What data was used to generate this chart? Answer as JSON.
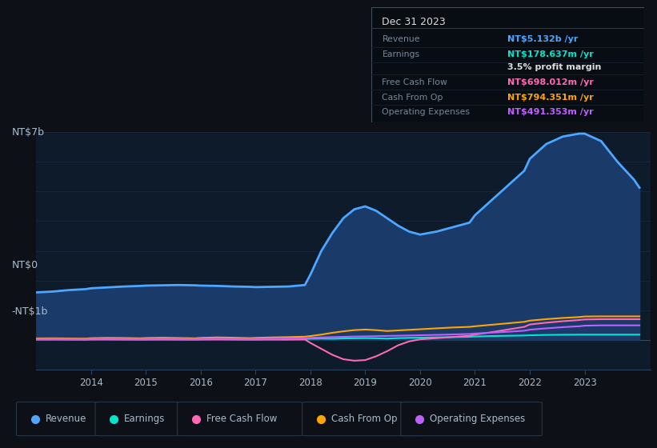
{
  "bg_color": "#0d1117",
  "plot_bg_color": "#0d1b2a",
  "grid_color": "#1e3a5f",
  "text_color": "#aabbcc",
  "title_color": "#ffffff",
  "years": [
    2013.0,
    2013.3,
    2013.6,
    2013.9,
    2014.0,
    2014.3,
    2014.6,
    2014.9,
    2015.0,
    2015.3,
    2015.6,
    2015.9,
    2016.0,
    2016.3,
    2016.6,
    2016.9,
    2017.0,
    2017.3,
    2017.6,
    2017.9,
    2018.0,
    2018.2,
    2018.4,
    2018.6,
    2018.8,
    2019.0,
    2019.2,
    2019.4,
    2019.6,
    2019.8,
    2020.0,
    2020.3,
    2020.6,
    2020.9,
    2021.0,
    2021.3,
    2021.6,
    2021.9,
    2022.0,
    2022.3,
    2022.6,
    2022.9,
    2023.0,
    2023.3,
    2023.6,
    2023.9,
    2024.0
  ],
  "revenue": [
    1.6,
    1.63,
    1.68,
    1.71,
    1.74,
    1.77,
    1.8,
    1.82,
    1.83,
    1.84,
    1.85,
    1.84,
    1.83,
    1.82,
    1.8,
    1.79,
    1.78,
    1.79,
    1.8,
    1.85,
    2.2,
    3.0,
    3.6,
    4.1,
    4.4,
    4.5,
    4.35,
    4.1,
    3.85,
    3.65,
    3.55,
    3.65,
    3.8,
    3.95,
    4.2,
    4.7,
    5.2,
    5.7,
    6.1,
    6.6,
    6.85,
    6.95,
    6.95,
    6.7,
    6.0,
    5.4,
    5.13
  ],
  "earnings": [
    0.02,
    0.022,
    0.02,
    0.018,
    0.025,
    0.022,
    0.02,
    0.018,
    0.02,
    0.022,
    0.02,
    0.018,
    0.022,
    0.025,
    0.022,
    0.018,
    0.02,
    0.022,
    0.025,
    0.03,
    0.04,
    0.045,
    0.04,
    0.05,
    0.055,
    0.06,
    0.055,
    0.045,
    0.06,
    0.07,
    0.075,
    0.085,
    0.095,
    0.105,
    0.115,
    0.13,
    0.14,
    0.15,
    0.158,
    0.168,
    0.175,
    0.178,
    0.179,
    0.179,
    0.179,
    0.179,
    0.179
  ],
  "free_cash_flow": [
    0.01,
    0.012,
    0.01,
    0.008,
    0.012,
    0.015,
    0.012,
    0.008,
    0.01,
    0.012,
    0.01,
    0.008,
    0.012,
    0.015,
    0.012,
    0.008,
    0.01,
    0.012,
    0.01,
    0.015,
    -0.1,
    -0.3,
    -0.5,
    -0.65,
    -0.7,
    -0.68,
    -0.55,
    -0.38,
    -0.18,
    -0.05,
    0.02,
    0.06,
    0.1,
    0.14,
    0.18,
    0.26,
    0.35,
    0.44,
    0.52,
    0.58,
    0.63,
    0.67,
    0.69,
    0.698,
    0.698,
    0.698,
    0.698
  ],
  "cash_from_op": [
    0.05,
    0.055,
    0.05,
    0.045,
    0.06,
    0.07,
    0.065,
    0.055,
    0.065,
    0.075,
    0.065,
    0.055,
    0.07,
    0.085,
    0.075,
    0.06,
    0.07,
    0.085,
    0.095,
    0.11,
    0.13,
    0.18,
    0.24,
    0.29,
    0.33,
    0.35,
    0.33,
    0.3,
    0.32,
    0.34,
    0.36,
    0.39,
    0.42,
    0.44,
    0.46,
    0.51,
    0.56,
    0.61,
    0.65,
    0.7,
    0.74,
    0.77,
    0.79,
    0.794,
    0.794,
    0.794,
    0.794
  ],
  "operating_expenses": [
    0.03,
    0.032,
    0.03,
    0.028,
    0.035,
    0.038,
    0.035,
    0.03,
    0.035,
    0.038,
    0.035,
    0.03,
    0.038,
    0.042,
    0.038,
    0.032,
    0.038,
    0.042,
    0.048,
    0.058,
    0.07,
    0.085,
    0.095,
    0.105,
    0.115,
    0.12,
    0.128,
    0.135,
    0.142,
    0.15,
    0.158,
    0.17,
    0.185,
    0.2,
    0.215,
    0.245,
    0.275,
    0.31,
    0.345,
    0.39,
    0.43,
    0.46,
    0.48,
    0.491,
    0.491,
    0.491,
    0.491
  ],
  "revenue_color": "#4da6ff",
  "revenue_fill_color": "#1a3a6a",
  "earnings_color": "#00e5cc",
  "free_cash_flow_color": "#ff69b4",
  "cash_from_op_color": "#ffa500",
  "operating_expenses_color": "#bf5fff",
  "xticks": [
    2014,
    2015,
    2016,
    2017,
    2018,
    2019,
    2020,
    2021,
    2022,
    2023
  ],
  "legend_items": [
    "Revenue",
    "Earnings",
    "Free Cash Flow",
    "Cash From Op",
    "Operating Expenses"
  ],
  "legend_colors": [
    "#4da6ff",
    "#00e5cc",
    "#ff69b4",
    "#ffa500",
    "#bf5fff"
  ],
  "tooltip_title": "Dec 31 2023",
  "tooltip_rows": [
    [
      "Revenue",
      "NT$5.132b /yr",
      "#4da6ff"
    ],
    [
      "Earnings",
      "NT$178.637m /yr",
      "#00e5cc"
    ],
    [
      "",
      "3.5% profit margin",
      "#dddddd"
    ],
    [
      "Free Cash Flow",
      "NT$698.012m /yr",
      "#ff69b4"
    ],
    [
      "Cash From Op",
      "NT$794.351m /yr",
      "#ffa500"
    ],
    [
      "Operating Expenses",
      "NT$491.353m /yr",
      "#bf5fff"
    ]
  ]
}
